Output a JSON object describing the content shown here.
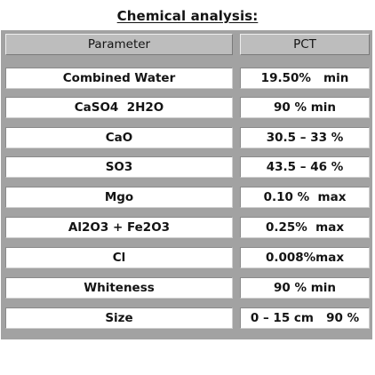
{
  "title": "Chemical analysis:",
  "table": {
    "headers": {
      "parameter": "Parameter",
      "pct": "PCT"
    },
    "rows": [
      {
        "parameter": "Combined Water",
        "pct": "19.50%   min"
      },
      {
        "parameter": "CaSO4  2H2O",
        "pct": "90 % min"
      },
      {
        "parameter": "CaO",
        "pct": "30.5 – 33 %"
      },
      {
        "parameter": "SO3",
        "pct": "43.5 – 46 %"
      },
      {
        "parameter": "Mgo",
        "pct": "0.10 %  max"
      },
      {
        "parameter": "Al2O3 + Fe2O3",
        "pct": "0.25%  max"
      },
      {
        "parameter": "Cl",
        "pct": "0.008%max"
      },
      {
        "parameter": "Whiteness",
        "pct": "90 % min"
      },
      {
        "parameter": "Size",
        "pct": "0 – 15 cm   90 %"
      }
    ]
  }
}
